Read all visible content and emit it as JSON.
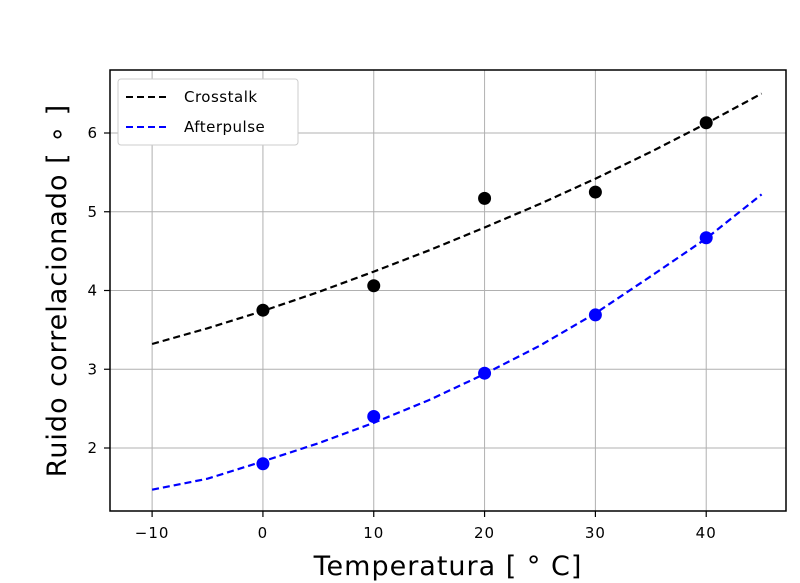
{
  "chart_data": {
    "type": "scatter",
    "xlabel": "Temperatura [ ° C]",
    "ylabel": "Ruido correlacionado [ ∘ ]",
    "xlim": [
      -13.8,
      47.2
    ],
    "ylim": [
      1.2,
      6.8
    ],
    "xticks": [
      -10,
      0,
      10,
      20,
      30,
      40
    ],
    "xtick_labels": [
      "−10",
      "0",
      "10",
      "20",
      "30",
      "40"
    ],
    "yticks": [
      2,
      3,
      4,
      5,
      6
    ],
    "ytick_labels": [
      "2",
      "3",
      "4",
      "5",
      "6"
    ],
    "grid": true,
    "legend_position": "top-left",
    "series": [
      {
        "name": "Crosstalk",
        "color": "#000000",
        "points": {
          "x": [
            0,
            10,
            20,
            30,
            40
          ],
          "y": [
            3.75,
            4.06,
            5.17,
            5.25,
            6.13
          ]
        },
        "fit": {
          "x": [
            -10,
            -5,
            0,
            5,
            10,
            15,
            20,
            25,
            30,
            35,
            40,
            45
          ],
          "y": [
            3.32,
            3.52,
            3.74,
            3.98,
            4.24,
            4.51,
            4.8,
            5.1,
            5.42,
            5.76,
            6.12,
            6.5
          ]
        }
      },
      {
        "name": "Afterpulse",
        "color": "#0000ff",
        "points": {
          "x": [
            0,
            10,
            20,
            30,
            40
          ],
          "y": [
            1.8,
            2.4,
            2.95,
            3.69,
            4.67
          ]
        },
        "fit": {
          "x": [
            -10,
            -5,
            0,
            5,
            10,
            15,
            20,
            25,
            30,
            35,
            40,
            45
          ],
          "y": [
            1.47,
            1.61,
            1.83,
            2.06,
            2.32,
            2.61,
            2.94,
            3.3,
            3.71,
            4.18,
            4.66,
            5.22
          ]
        }
      }
    ]
  }
}
